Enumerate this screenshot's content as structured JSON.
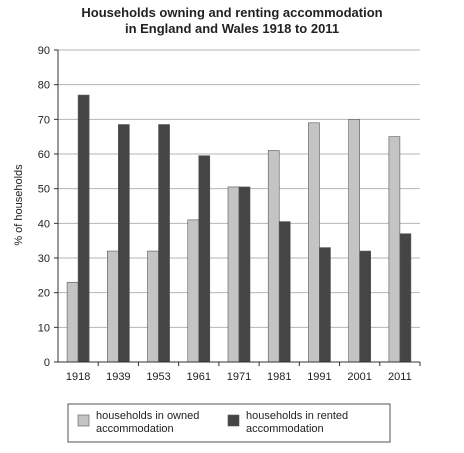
{
  "chart_data": {
    "type": "bar",
    "title_line1": "Households owning and renting accommodation",
    "title_line2": "in England and Wales 1918 to 2011",
    "xlabel": "",
    "ylabel": "% of households",
    "ylim": [
      0,
      90
    ],
    "yticks": [
      0,
      10,
      20,
      30,
      40,
      50,
      60,
      70,
      80,
      90
    ],
    "grid": "horizontal",
    "legend_position": "bottom",
    "categories": [
      "1918",
      "1939",
      "1953",
      "1961",
      "1971",
      "1981",
      "1991",
      "2001",
      "2011"
    ],
    "series": [
      {
        "name_line1": "households in owned",
        "name_line2": "accommodation",
        "color": "#c4c4c4",
        "values": [
          23,
          32,
          32,
          41,
          50.5,
          61,
          69,
          70,
          65
        ]
      },
      {
        "name_line1": "households in rented",
        "name_line2": "accommodation",
        "color": "#454545",
        "values": [
          77,
          68.5,
          68.5,
          59.5,
          50.5,
          40.5,
          33,
          32,
          37
        ]
      }
    ]
  }
}
